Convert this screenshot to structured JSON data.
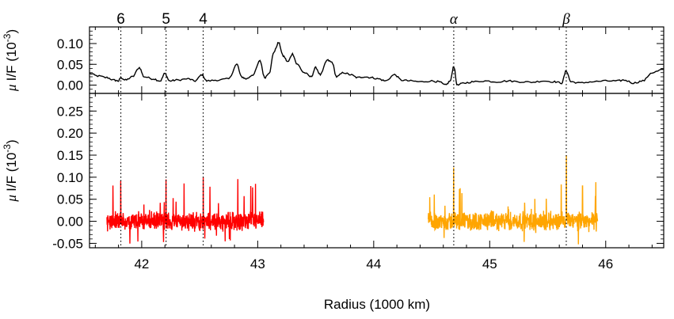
{
  "chart_data": [
    {
      "type": "line",
      "panel": "top",
      "ylabel_mu": "μ",
      "ylabel_rest": "I/F (10",
      "ylabel_exp": "-3",
      "ylabel_close": ")",
      "xlim": [
        41.55,
        46.5
      ],
      "ylim": [
        -0.02,
        0.14
      ],
      "yticks": [
        0.0,
        0.05,
        0.1
      ],
      "ytick_labels": [
        "0.00",
        "0.05",
        "0.10"
      ],
      "series": [
        {
          "color": "#000000",
          "x": [
            41.55,
            41.62,
            41.7,
            41.76,
            41.8,
            41.82,
            41.86,
            41.92,
            41.98,
            42.02,
            42.1,
            42.16,
            42.2,
            42.24,
            42.3,
            42.4,
            42.46,
            42.52,
            42.56,
            42.65,
            42.75,
            42.82,
            42.86,
            42.9,
            42.96,
            43.02,
            43.06,
            43.1,
            43.14,
            43.18,
            43.22,
            43.26,
            43.3,
            43.34,
            43.4,
            43.46,
            43.5,
            43.54,
            43.6,
            43.64,
            43.68,
            43.74,
            43.8,
            43.86,
            43.92,
            43.98,
            44.04,
            44.1,
            44.18,
            44.24,
            44.32,
            44.4,
            44.5,
            44.56,
            44.62,
            44.66,
            44.69,
            44.72,
            44.78,
            44.86,
            44.96,
            45.06,
            45.16,
            45.26,
            45.36,
            45.46,
            45.56,
            45.62,
            45.66,
            45.7,
            45.78,
            45.88,
            46.0,
            46.1,
            46.16,
            46.24,
            46.32,
            46.4,
            46.5
          ],
          "y": [
            0.028,
            0.022,
            0.018,
            0.012,
            0.01,
            0.018,
            0.012,
            0.02,
            0.042,
            0.02,
            0.015,
            0.01,
            0.028,
            0.01,
            0.012,
            0.015,
            0.01,
            0.025,
            0.01,
            0.012,
            0.015,
            0.05,
            0.02,
            0.015,
            0.025,
            0.058,
            0.018,
            0.03,
            0.08,
            0.102,
            0.07,
            0.056,
            0.075,
            0.05,
            0.03,
            0.02,
            0.042,
            0.025,
            0.06,
            0.055,
            0.02,
            0.03,
            0.025,
            0.018,
            0.02,
            0.018,
            0.015,
            0.01,
            0.025,
            0.012,
            0.01,
            0.008,
            0.01,
            0.008,
            0.0,
            0.01,
            0.045,
            0.0,
            0.005,
            0.008,
            0.01,
            0.008,
            0.01,
            0.008,
            0.007,
            0.01,
            0.008,
            0.005,
            0.034,
            0.008,
            0.005,
            0.008,
            0.01,
            0.01,
            0.012,
            0.005,
            0.01,
            0.03,
            0.038
          ]
        }
      ]
    },
    {
      "type": "line",
      "panel": "bottom",
      "ylabel_mu": "μ",
      "ylabel_rest": "I/F (10",
      "ylabel_exp": "-3",
      "ylabel_close": ")",
      "xlabel": "Radius (1000 km)",
      "xlim": [
        41.55,
        46.5
      ],
      "ylim": [
        -0.06,
        0.29
      ],
      "yticks": [
        -0.05,
        0.0,
        0.05,
        0.1,
        0.15,
        0.2,
        0.25
      ],
      "ytick_labels": [
        "-0.05",
        "0.00",
        "0.05",
        "0.10",
        "0.15",
        "0.20",
        "0.25"
      ],
      "xticks": [
        42,
        43,
        44,
        45,
        46
      ],
      "xtick_labels": [
        "42",
        "43",
        "44",
        "45",
        "46"
      ],
      "series": [
        {
          "color": "#ff0000",
          "x_range": [
            41.7,
            43.05
          ],
          "noise_amplitude": 0.025,
          "spikes": [
            {
              "x": 41.82,
              "y": 0.092
            },
            {
              "x": 42.21,
              "y": 0.095
            },
            {
              "x": 42.53,
              "y": 0.1
            },
            {
              "x": 42.98,
              "y": 0.085
            }
          ]
        },
        {
          "color": "#ffa500",
          "x_range": [
            44.47,
            45.93
          ],
          "noise_amplitude": 0.025,
          "spikes": [
            {
              "x": 44.69,
              "y": 0.122
            },
            {
              "x": 45.66,
              "y": 0.15
            },
            {
              "x": 45.8,
              "y": 0.08
            }
          ]
        }
      ]
    }
  ],
  "markers": [
    {
      "label": "6",
      "x": 41.82,
      "greek": false
    },
    {
      "label": "5",
      "x": 42.21,
      "greek": false
    },
    {
      "label": "4",
      "x": 42.53,
      "greek": false
    },
    {
      "label": "α",
      "x": 44.69,
      "greek": true
    },
    {
      "label": "β",
      "x": 45.66,
      "greek": true
    }
  ]
}
